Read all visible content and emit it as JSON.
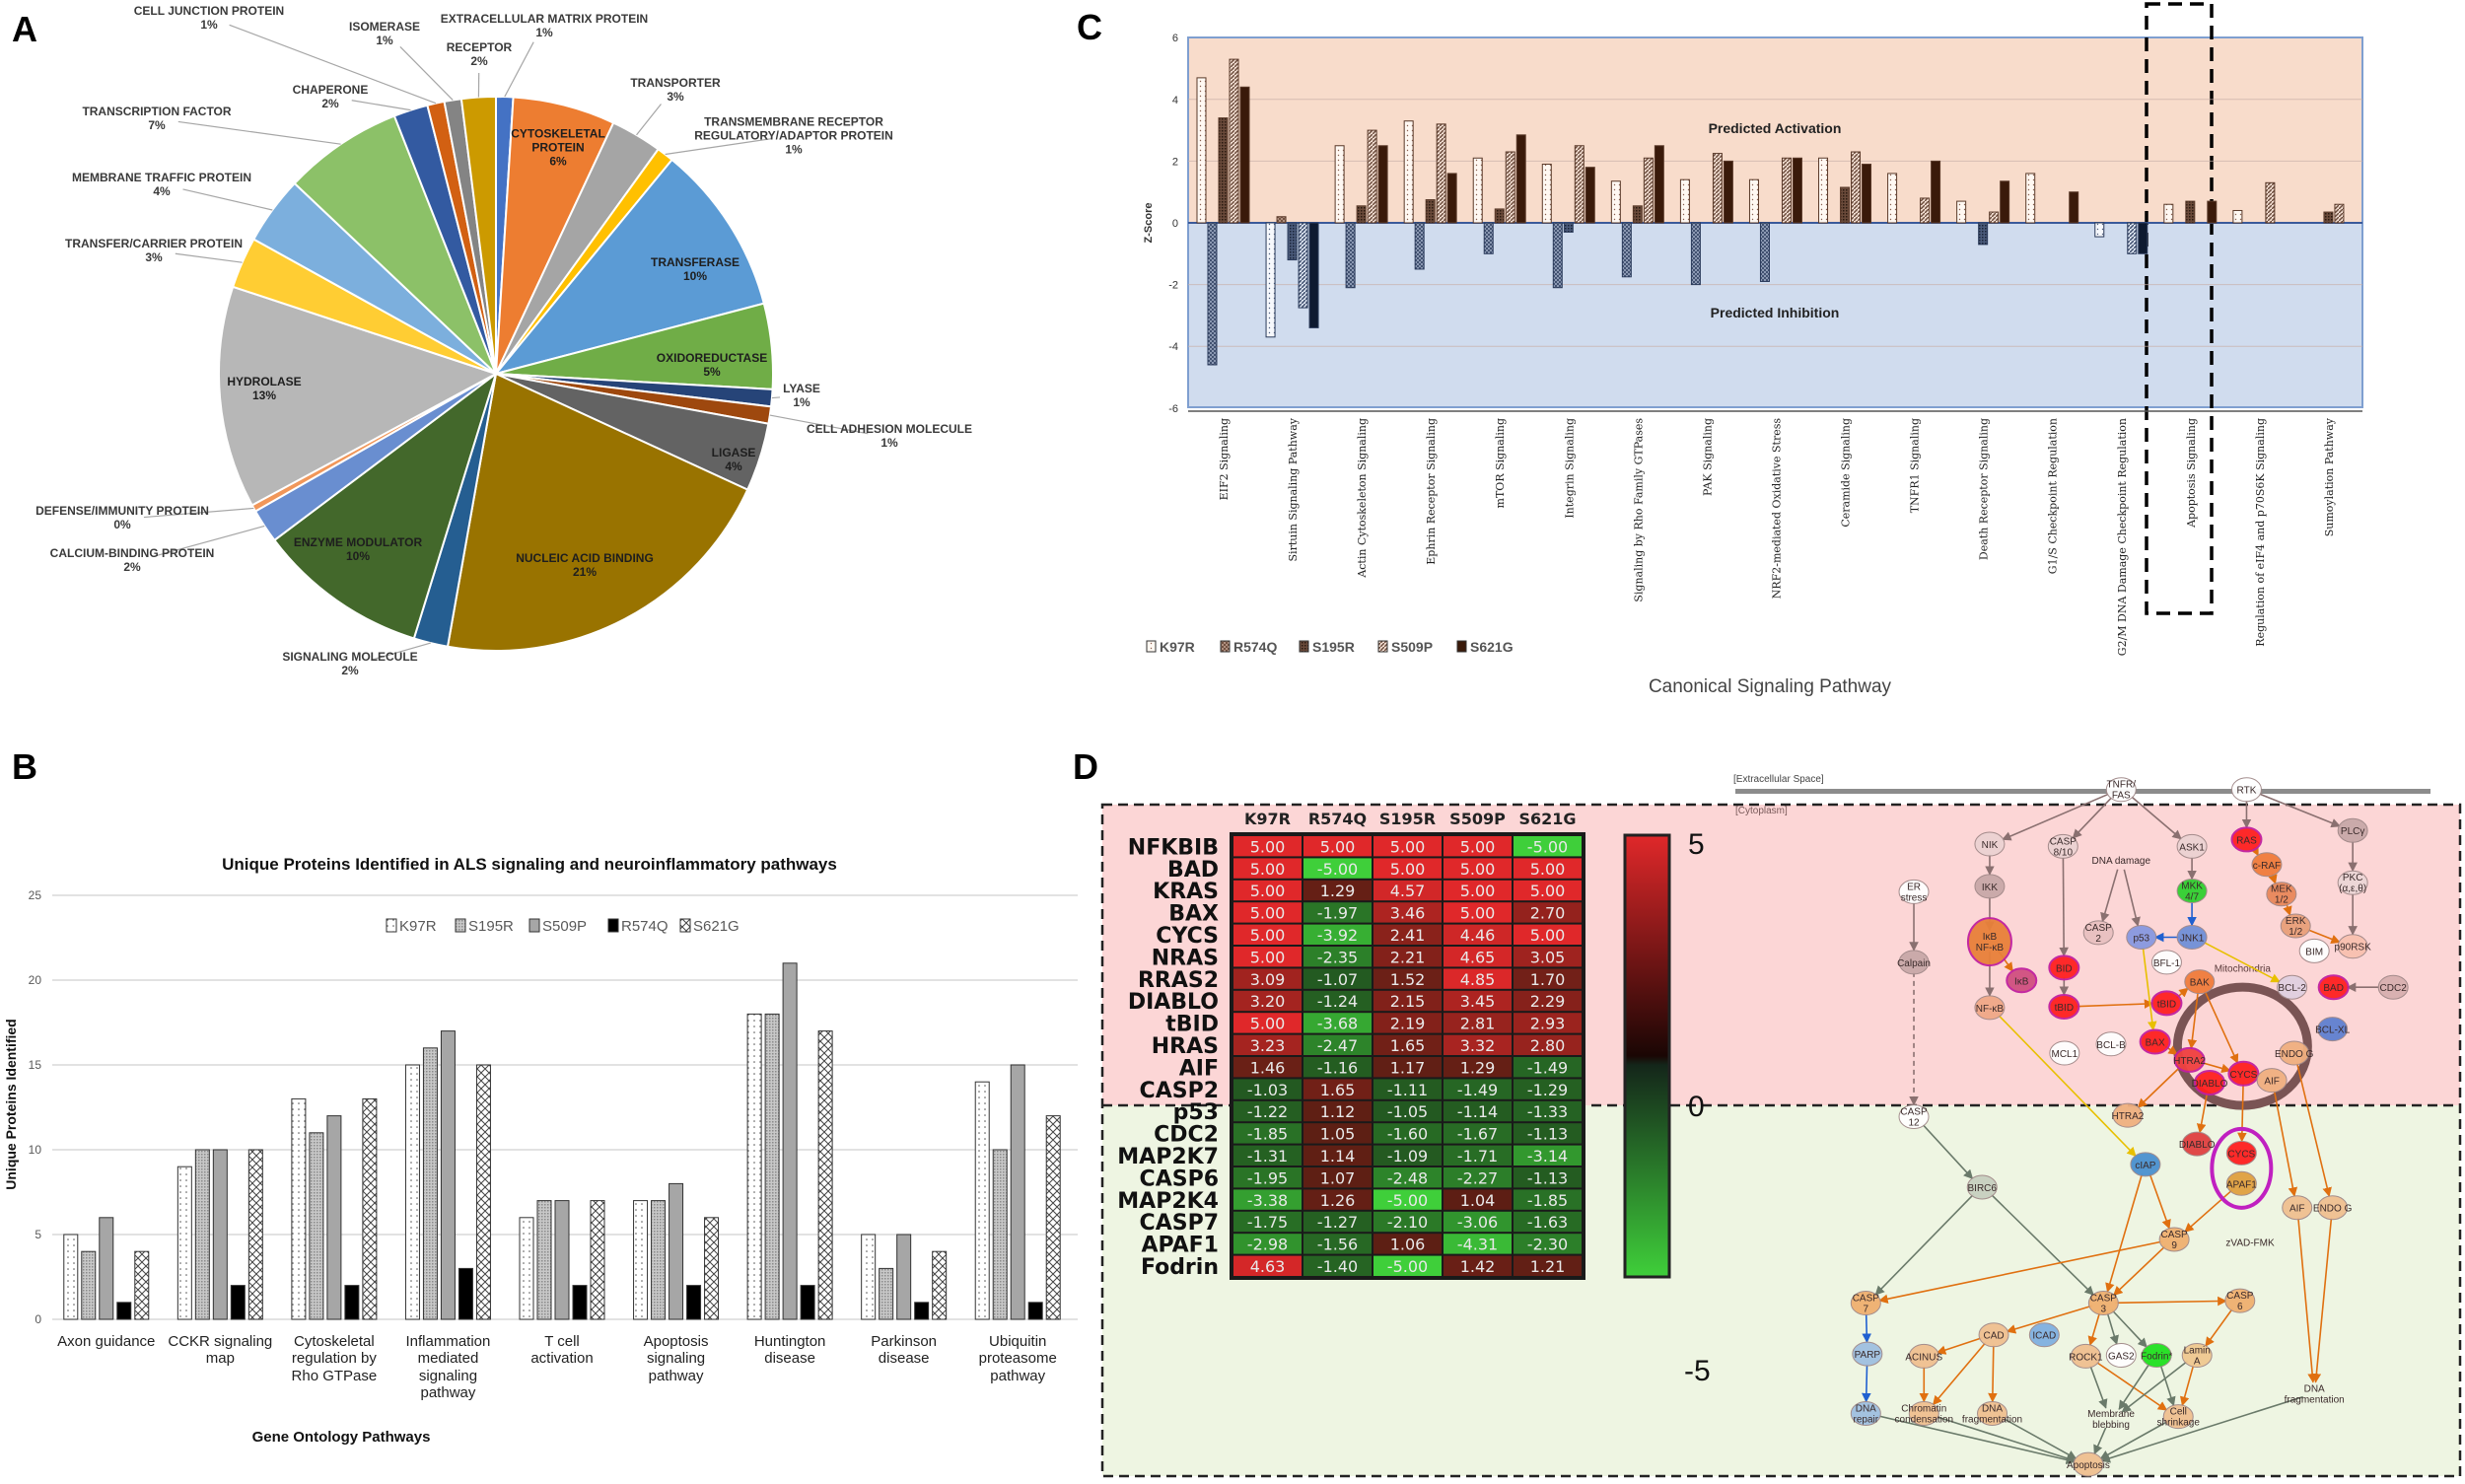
{
  "panel_labels": {
    "a": "A",
    "b": "B",
    "c": "C",
    "d": "D"
  },
  "chart_data": [
    {
      "type": "pie",
      "panel": "A",
      "slices": [
        {
          "label": "EXTRACELLULAR MATRIX PROTEIN",
          "pct": "1%",
          "value": 1,
          "color": "#4472c4"
        },
        {
          "label": "CYTOSKELETAL\nPROTEIN",
          "pct": "6%",
          "value": 6,
          "color": "#ed7d31"
        },
        {
          "label": "TRANSPORTER",
          "pct": "3%",
          "value": 3,
          "color": "#a5a5a5"
        },
        {
          "label": "TRANSMEMBRANE RECEPTOR\nREGULATORY/ADAPTOR PROTEIN",
          "pct": "1%",
          "value": 1,
          "color": "#ffc000"
        },
        {
          "label": "TRANSFERASE",
          "pct": "10%",
          "value": 10,
          "color": "#5b9bd5"
        },
        {
          "label": "OXIDOREDUCTASE",
          "pct": "5%",
          "value": 5,
          "color": "#70ad47"
        },
        {
          "label": "LYASE",
          "pct": "1%",
          "value": 1,
          "color": "#264478"
        },
        {
          "label": "CELL ADHESION MOLECULE",
          "pct": "1%",
          "value": 1,
          "color": "#9e480e"
        },
        {
          "label": "LIGASE",
          "pct": "4%",
          "value": 4,
          "color": "#636363"
        },
        {
          "label": "NUCLEIC ACID BINDING",
          "pct": "21%",
          "value": 21,
          "color": "#997300"
        },
        {
          "label": "SIGNALING MOLECULE",
          "pct": "2%",
          "value": 2,
          "color": "#255e91"
        },
        {
          "label": "ENZYME MODULATOR",
          "pct": "10%",
          "value": 10,
          "color": "#43682b"
        },
        {
          "label": "CALCIUM-BINDING PROTEIN",
          "pct": "2%",
          "value": 2,
          "color": "#698ed0"
        },
        {
          "label": "DEFENSE/IMMUNITY  PROTEIN",
          "pct": "0%",
          "value": 0,
          "color": "#f1975a"
        },
        {
          "label": "HYDROLASE",
          "pct": "13%",
          "value": 13,
          "color": "#b7b7b7"
        },
        {
          "label": "TRANSFER/CARRIER  PROTEIN",
          "pct": "3%",
          "value": 3,
          "color": "#ffcd33"
        },
        {
          "label": "MEMBRANE TRAFFIC PROTEIN",
          "pct": "4%",
          "value": 4,
          "color": "#7cafdd"
        },
        {
          "label": "TRANSCRIPTION FACTOR",
          "pct": "7%",
          "value": 7,
          "color": "#8cc168"
        },
        {
          "label": "CHAPERONE",
          "pct": "2%",
          "value": 2,
          "color": "#335aa1"
        },
        {
          "label": "CELL JUNCTION PROTEIN",
          "pct": "1%",
          "value": 1,
          "color": "#d26012"
        },
        {
          "label": "ISOMERASE",
          "pct": "1%",
          "value": 1,
          "color": "#848484"
        },
        {
          "label": "RECEPTOR",
          "pct": "2%",
          "value": 2,
          "color": "#cc9a00"
        }
      ]
    },
    {
      "type": "bar",
      "panel": "B",
      "title": "Unique Proteins Identified in ALS signaling and neuroinflammatory pathways",
      "xlabel": "Gene Ontology Pathways",
      "ylabel": "Unique Proteins Identified",
      "ylim": [
        0,
        25
      ],
      "yticks": [
        "0",
        "5",
        "10",
        "15",
        "20",
        "25"
      ],
      "legend_position": "top-center",
      "categories": [
        "Axon guidance",
        "CCKR signaling\nmap",
        "Cytoskeletal\nregulation by\nRho GTPase",
        "Inflammation\nmediated\nsignaling\npathway",
        "T cell\nactivation",
        "Apoptosis\nsignaling\npathway",
        "Huntington\ndisease",
        "Parkinson\ndisease",
        "Ubiquitin\nproteasome\npathway"
      ],
      "series": [
        {
          "name": "K97R",
          "values": [
            5,
            9,
            13,
            15,
            6,
            7,
            18,
            5,
            14
          ]
        },
        {
          "name": "S195R",
          "values": [
            4,
            10,
            11,
            16,
            7,
            7,
            18,
            3,
            10
          ]
        },
        {
          "name": "S509P",
          "values": [
            6,
            10,
            12,
            17,
            7,
            8,
            21,
            5,
            15
          ]
        },
        {
          "name": "R574Q",
          "values": [
            1,
            2,
            2,
            3,
            2,
            2,
            2,
            1,
            1
          ]
        },
        {
          "name": "S621G",
          "values": [
            4,
            10,
            13,
            15,
            7,
            6,
            17,
            4,
            12
          ]
        }
      ]
    },
    {
      "type": "bar",
      "panel": "C",
      "xlabel": "Canonical Signaling Pathway",
      "ylabel": "Z-Score",
      "ylim": [
        -6,
        6
      ],
      "yticks": [
        "-6",
        "-4",
        "-2",
        "0",
        "2",
        "4",
        "6"
      ],
      "annotations": {
        "activation": "Predicted Activation",
        "inhibition": "Predicted Inhibition"
      },
      "highlighted_category": "Apoptosis Signaling",
      "legend_position": "bottom-left",
      "categories": [
        "EIF2 Signaling",
        "Sirtuin Signaling Pathway",
        "Actin Cytoskeleton Signaling",
        "Ephrin Receptor Signaling",
        "mTOR Signaling",
        "Integrin Signaling",
        "Signaling by Rho Family GTPases",
        "PAK Signaling",
        "NRF2-mediated Oxidative Stress",
        "Ceramide Signaling",
        "TNFR1 Signaling",
        "Death Receptor Signaling",
        "G1/S Checkpoint Regulation",
        "G2/M DNA Damage Checkpoint Regulation",
        "Apoptosis Signaling",
        "Regulation of eIF4 and p70S6K Signaling",
        "Sumoylation Pathway"
      ],
      "series": [
        {
          "name": "K97R",
          "values": [
            4.7,
            -3.7,
            2.5,
            3.3,
            2.1,
            1.9,
            1.35,
            1.4,
            1.4,
            2.1,
            1.6,
            0.7,
            1.6,
            -0.45,
            0.6,
            0.4,
            0
          ]
        },
        {
          "name": "R574Q",
          "values": [
            -4.6,
            0.2,
            -2.1,
            -1.5,
            -1.0,
            -2.1,
            -1.75,
            -2.0,
            -1.9,
            0,
            0,
            0,
            0,
            0,
            0,
            0,
            0
          ]
        },
        {
          "name": "S195R",
          "values": [
            3.4,
            -1.2,
            0.55,
            0.75,
            0.45,
            -0.3,
            0.55,
            0,
            0,
            1.15,
            0,
            -0.7,
            0,
            0,
            0.7,
            0,
            0.35
          ]
        },
        {
          "name": "S509P",
          "values": [
            5.3,
            -2.75,
            3.0,
            3.2,
            2.3,
            2.5,
            2.1,
            2.25,
            2.1,
            2.3,
            0.8,
            0.35,
            0,
            -1.0,
            0,
            1.3,
            0.6
          ]
        },
        {
          "name": "S621G",
          "values": [
            4.4,
            -3.4,
            2.5,
            1.6,
            2.85,
            1.8,
            2.5,
            2.0,
            2.1,
            1.9,
            2.0,
            1.35,
            1.0,
            -1.0,
            0.7,
            0,
            0
          ]
        }
      ]
    },
    {
      "type": "heatmap",
      "panel": "D",
      "columns": [
        "K97R",
        "R574Q",
        "S195R",
        "S509P",
        "S621G"
      ],
      "rows": [
        "NFKBIB",
        "BAD",
        "KRAS",
        "BAX",
        "CYCS",
        "NRAS",
        "RRAS2",
        "DIABLO",
        "tBID",
        "HRAS",
        "AIF",
        "CASP2",
        "p53",
        "CDC2",
        "MAP2K7",
        "CASP6",
        "MAP2K4",
        "CASP7",
        "APAF1",
        "Fodrin"
      ],
      "values": [
        [
          "5.00",
          "5.00",
          "5.00",
          "5.00",
          "-5.00"
        ],
        [
          "5.00",
          "-5.00",
          "5.00",
          "5.00",
          "5.00"
        ],
        [
          "5.00",
          "1.29",
          "4.57",
          "5.00",
          "5.00"
        ],
        [
          "5.00",
          "-1.97",
          "3.46",
          "5.00",
          "2.70"
        ],
        [
          "5.00",
          "-3.92",
          "2.41",
          "4.46",
          "5.00"
        ],
        [
          "5.00",
          "-2.35",
          "2.21",
          "4.65",
          "3.05"
        ],
        [
          "3.09",
          "-1.07",
          "1.52",
          "4.85",
          "1.70"
        ],
        [
          "3.20",
          "-1.24",
          "2.15",
          "3.45",
          "2.29"
        ],
        [
          "5.00",
          "-3.68",
          "2.19",
          "2.81",
          "2.93"
        ],
        [
          "3.23",
          "-2.47",
          "1.65",
          "3.32",
          "2.80"
        ],
        [
          "1.46",
          "-1.16",
          "1.17",
          "1.29",
          "-1.49"
        ],
        [
          "-1.03",
          "1.65",
          "-1.11",
          "-1.49",
          "-1.29"
        ],
        [
          "-1.22",
          "1.12",
          "-1.05",
          "-1.14",
          "-1.33"
        ],
        [
          "-1.85",
          "1.05",
          "-1.60",
          "-1.67",
          "-1.13"
        ],
        [
          "-1.31",
          "1.14",
          "-1.09",
          "-1.71",
          "-3.14"
        ],
        [
          "-1.95",
          "1.07",
          "-2.48",
          "-2.27",
          "-1.13"
        ],
        [
          "-3.38",
          "1.26",
          "-5.00",
          "1.04",
          "-1.85"
        ],
        [
          "-1.75",
          "-1.27",
          "-2.10",
          "-3.06",
          "-1.63"
        ],
        [
          "-2.98",
          "-1.56",
          "1.06",
          "-4.31",
          "-2.30"
        ],
        [
          "4.63",
          "-1.40",
          "-5.00",
          "1.42",
          "1.21"
        ]
      ],
      "scale_labels": {
        "max": "5",
        "mid": "0",
        "min": "-5"
      },
      "colors": {
        "high": "#e0282a",
        "mid": "#2a0806",
        "low": "#3fcf3a"
      }
    }
  ],
  "pathway_diagram": {
    "extracellular_label": "[Extracellular Space]",
    "cytoplasm_label": "[Cytoplasm]",
    "mitochondria_label": "Mitochondria",
    "nodes": [
      {
        "label": "TNFR/\nFAS",
        "color": "#ffffff"
      },
      {
        "label": "RTK",
        "color": "#ffffff"
      },
      {
        "label": "NIK",
        "color": "#ecd2d2"
      },
      {
        "label": "CASP\n8/10",
        "color": "#ecd2d2"
      },
      {
        "label": "DNA damage",
        "color": "none"
      },
      {
        "label": "ASK1",
        "color": "#ecd2d2"
      },
      {
        "label": "RAS",
        "color": "#ff2020"
      },
      {
        "label": "c-RAF",
        "color": "#f07c3c"
      },
      {
        "label": "MEK\n1/2",
        "color": "#e8885a"
      },
      {
        "label": "ERK\n1/2",
        "color": "#e8a07a"
      },
      {
        "label": "PLCγ",
        "color": "#c8a8a8"
      },
      {
        "label": "PKC\n(α,ε,θ)",
        "color": "#ecd6d6"
      },
      {
        "label": "p90RSK",
        "color": "#f8c0b0"
      },
      {
        "label": "BIM",
        "color": "#ffffff"
      },
      {
        "label": "ER\nstress",
        "color": "#ffffff"
      },
      {
        "label": "IKK",
        "color": "#c8a8a8"
      },
      {
        "label": "IκB\nNF-κB",
        "color": "#e8803a"
      },
      {
        "label": "IκB",
        "color": "#d05080"
      },
      {
        "label": "NF-κB",
        "color": "#f0a888"
      },
      {
        "label": "Calpain",
        "color": "#c8a8a8"
      },
      {
        "label": "MKK\n4/7",
        "color": "#30d030"
      },
      {
        "label": "JNK1",
        "color": "#7090d8"
      },
      {
        "label": "p53",
        "color": "#8898e0"
      },
      {
        "label": "CASP\n2",
        "color": "#e8c0c0"
      },
      {
        "label": "BFL-1",
        "color": "#ffffff"
      },
      {
        "label": "BID",
        "color": "#ff2020"
      },
      {
        "label": "tBID",
        "color": "#ff2020"
      },
      {
        "label": "tBID",
        "color": "#ff2020"
      },
      {
        "label": "BAK",
        "color": "#f07c3c"
      },
      {
        "label": "BCL-2",
        "color": "#e0d0e0"
      },
      {
        "label": "BAD",
        "color": "#ff2020"
      },
      {
        "label": "CDC2",
        "color": "#d8b0b0"
      },
      {
        "label": "BCL-XL",
        "color": "#6080d0"
      },
      {
        "label": "MCL1",
        "color": "#ffffff"
      },
      {
        "label": "BCL-B",
        "color": "#ffffff"
      },
      {
        "label": "BAX",
        "color": "#ff2020"
      },
      {
        "label": "HTRA2",
        "color": "#f04040"
      },
      {
        "label": "CYCS",
        "color": "#ff2020"
      },
      {
        "label": "DIABLO",
        "color": "#ff2020"
      },
      {
        "label": "AIF",
        "color": "#f0b080"
      },
      {
        "label": "ENDO G",
        "color": "#f0b080"
      },
      {
        "label": "CASP\n12",
        "color": "#ffffff"
      },
      {
        "label": "HTRA2",
        "color": "#f0b080"
      },
      {
        "label": "cIAP",
        "color": "#4a90d0"
      },
      {
        "label": "DIABLO",
        "color": "#e04040"
      },
      {
        "label": "CYCS",
        "color": "#ff2020"
      },
      {
        "label": "APAF1",
        "color": "#e0a040"
      },
      {
        "label": "BIRC6",
        "color": "#c8d0c0"
      },
      {
        "label": "AIF",
        "color": "#f0c090"
      },
      {
        "label": "ENDO G",
        "color": "#f0c090"
      },
      {
        "label": "CASP\n9",
        "color": "#f0b070"
      },
      {
        "label": "zVAD-FMK",
        "color": "none"
      },
      {
        "label": "CASP\n7",
        "color": "#f0b070"
      },
      {
        "label": "CASP\n3",
        "color": "#f0b070"
      },
      {
        "label": "CASP\n6",
        "color": "#f0b070"
      },
      {
        "label": "CAD",
        "color": "#f0c090"
      },
      {
        "label": "ICAD",
        "color": "#80b0e0"
      },
      {
        "label": "PARP",
        "color": "#a0c0e0"
      },
      {
        "label": "ACINUS",
        "color": "#f0c090"
      },
      {
        "label": "ROCK1",
        "color": "#f0c090"
      },
      {
        "label": "GAS2",
        "color": "#ffffff"
      },
      {
        "label": "Fodrin*",
        "color": "#20e020"
      },
      {
        "label": "Lamin\nA",
        "color": "#f0c890"
      },
      {
        "label": "DNA\nrepair",
        "color": "#a0c0e0"
      },
      {
        "label": "Chromatin\ncondensation",
        "color": "#f0c090"
      },
      {
        "label": "DNA\nfragmentation",
        "color": "#f0c090"
      },
      {
        "label": "Membrane\nblebbing",
        "color": "none"
      },
      {
        "label": "Cell\nshrinkage",
        "color": "#f0c090"
      },
      {
        "label": "DNA\nfragmentation",
        "color": "none"
      },
      {
        "label": "Apoptosis",
        "color": "#f0c090"
      }
    ]
  }
}
